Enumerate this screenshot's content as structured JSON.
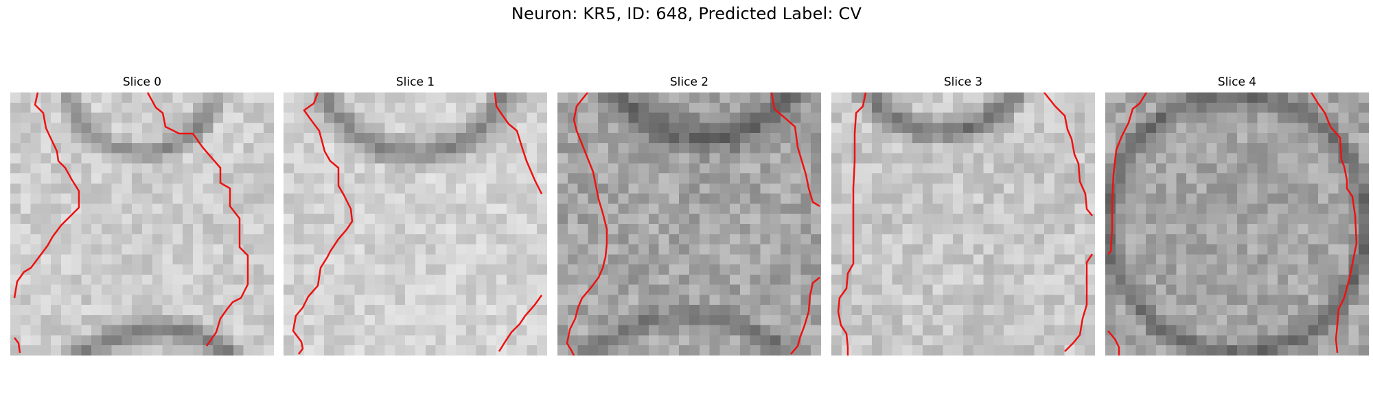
{
  "figure": {
    "title": "Neuron: KR5, ID: 648, Predicted Label: CV"
  },
  "panels": [
    {
      "title": "Slice 0"
    },
    {
      "title": "Slice 1"
    },
    {
      "title": "Slice 2"
    },
    {
      "title": "Slice 3"
    },
    {
      "title": "Slice 4"
    }
  ],
  "colors": {
    "contour": "#ee1111",
    "background": "#ffffff"
  }
}
